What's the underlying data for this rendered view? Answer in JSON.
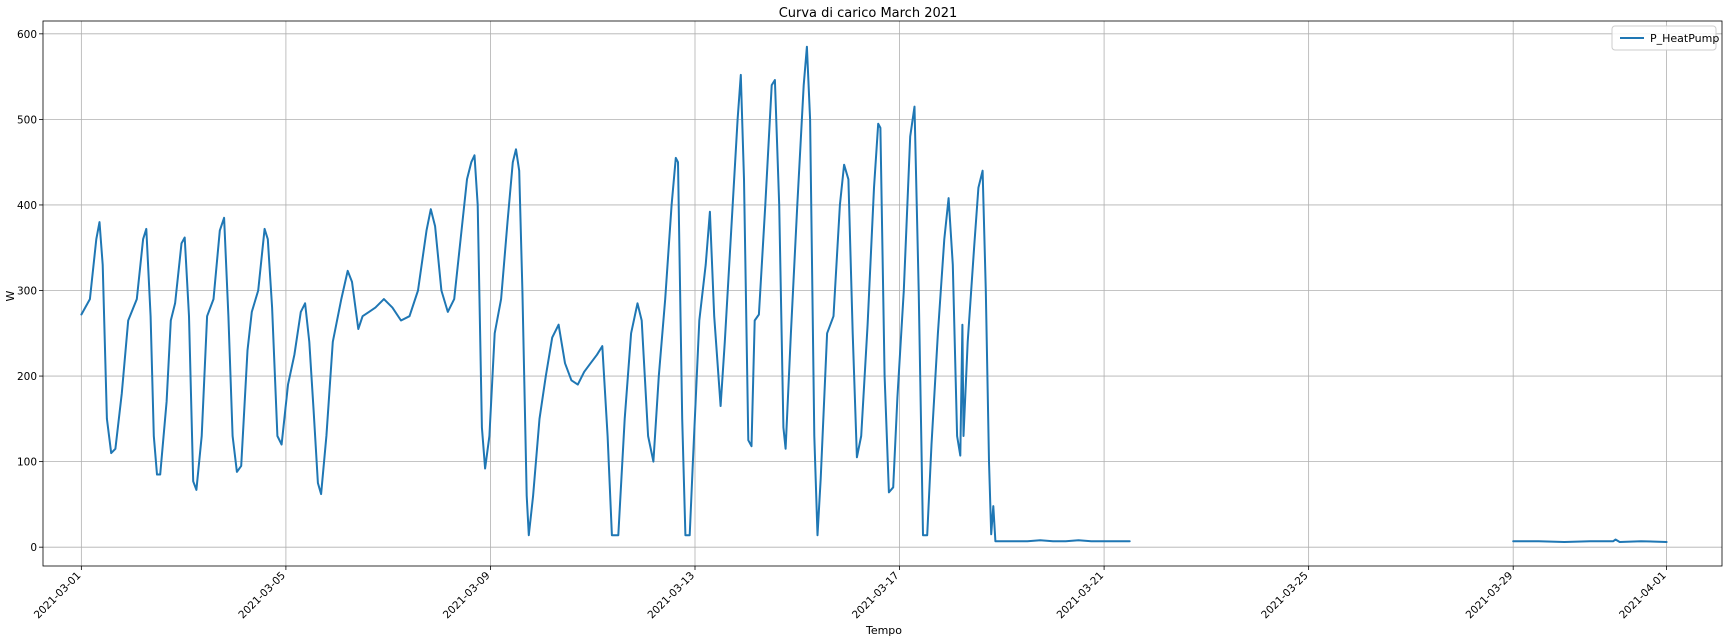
{
  "chart_data": {
    "type": "line",
    "title": "Curva di carico March 2021",
    "xlabel": "Tempo",
    "ylabel": "W",
    "xlim": [
      "2021-02-28 06:00",
      "2021-04-02 02:00"
    ],
    "ylim": [
      -22,
      615
    ],
    "grid": true,
    "legend_position": "top-right",
    "x_ticks": [
      "2021-03-01",
      "2021-03-05",
      "2021-03-09",
      "2021-03-13",
      "2021-03-17",
      "2021-03-21",
      "2021-03-25",
      "2021-03-29",
      "2021-04-01"
    ],
    "y_ticks": [
      0,
      100,
      200,
      300,
      400,
      500,
      600
    ],
    "colors": {
      "series": "#1f77b4",
      "grid": "#b0b0b0"
    },
    "series": [
      {
        "name": "P_HeatPump",
        "segments": [
          [
            [
              "2021-03-01 00:00",
              272
            ],
            [
              "2021-03-01 04:00",
              290
            ],
            [
              "2021-03-01 07:00",
              360
            ],
            [
              "2021-03-01 08:30",
              380
            ],
            [
              "2021-03-01 10:00",
              330
            ],
            [
              "2021-03-01 12:00",
              150
            ],
            [
              "2021-03-01 14:00",
              110
            ],
            [
              "2021-03-01 16:00",
              115
            ],
            [
              "2021-03-01 19:00",
              180
            ],
            [
              "2021-03-01 22:00",
              265
            ],
            [
              "2021-03-02 02:00",
              290
            ],
            [
              "2021-03-02 05:00",
              360
            ],
            [
              "2021-03-02 06:30",
              372
            ],
            [
              "2021-03-02 08:30",
              270
            ],
            [
              "2021-03-02 10:00",
              130
            ],
            [
              "2021-03-02 11:30",
              85
            ],
            [
              "2021-03-02 13:00",
              85
            ],
            [
              "2021-03-02 16:00",
              170
            ],
            [
              "2021-03-02 18:00",
              265
            ],
            [
              "2021-03-02 20:00",
              285
            ],
            [
              "2021-03-02 23:00",
              355
            ],
            [
              "2021-03-03 00:30",
              362
            ],
            [
              "2021-03-03 02:30",
              270
            ],
            [
              "2021-03-03 04:30",
              77
            ],
            [
              "2021-03-03 06:00",
              67
            ],
            [
              "2021-03-03 08:30",
              130
            ],
            [
              "2021-03-03 11:00",
              270
            ],
            [
              "2021-03-03 14:00",
              290
            ],
            [
              "2021-03-03 17:00",
              370
            ],
            [
              "2021-03-03 19:00",
              385
            ],
            [
              "2021-03-03 21:00",
              270
            ],
            [
              "2021-03-03 23:00",
              130
            ],
            [
              "2021-03-04 01:00",
              88
            ],
            [
              "2021-03-04 03:00",
              95
            ],
            [
              "2021-03-04 06:00",
              230
            ],
            [
              "2021-03-04 08:00",
              275
            ],
            [
              "2021-03-04 11:00",
              300
            ],
            [
              "2021-03-04 14:00",
              372
            ],
            [
              "2021-03-04 15:30",
              360
            ],
            [
              "2021-03-04 17:30",
              280
            ],
            [
              "2021-03-04 20:00",
              130
            ],
            [
              "2021-03-04 22:00",
              120
            ],
            [
              "2021-03-05 01:00",
              190
            ],
            [
              "2021-03-05 04:00",
              225
            ],
            [
              "2021-03-05 07:00",
              275
            ],
            [
              "2021-03-05 09:00",
              285
            ],
            [
              "2021-03-05 11:00",
              240
            ],
            [
              "2021-03-05 13:00",
              160
            ],
            [
              "2021-03-05 15:00",
              75
            ],
            [
              "2021-03-05 16:30",
              62
            ],
            [
              "2021-03-05 19:00",
              130
            ],
            [
              "2021-03-05 22:00",
              240
            ],
            [
              "2021-03-06 02:00",
              290
            ],
            [
              "2021-03-06 05:00",
              323
            ],
            [
              "2021-03-06 07:00",
              310
            ],
            [
              "2021-03-06 10:00",
              255
            ],
            [
              "2021-03-06 12:00",
              270
            ],
            [
              "2021-03-06 15:00",
              275
            ],
            [
              "2021-03-06 18:00",
              280
            ],
            [
              "2021-03-06 22:00",
              290
            ],
            [
              "2021-03-07 02:00",
              280
            ],
            [
              "2021-03-07 06:00",
              265
            ],
            [
              "2021-03-07 10:00",
              270
            ],
            [
              "2021-03-07 14:00",
              300
            ],
            [
              "2021-03-07 18:00",
              370
            ],
            [
              "2021-03-07 20:00",
              395
            ],
            [
              "2021-03-07 22:00",
              375
            ],
            [
              "2021-03-08 01:00",
              300
            ],
            [
              "2021-03-08 04:00",
              275
            ],
            [
              "2021-03-08 07:00",
              290
            ],
            [
              "2021-03-08 10:00",
              360
            ],
            [
              "2021-03-08 13:00",
              430
            ],
            [
              "2021-03-08 15:00",
              450
            ],
            [
              "2021-03-08 16:30",
              458
            ],
            [
              "2021-03-08 18:00",
              400
            ],
            [
              "2021-03-08 20:00",
              140
            ],
            [
              "2021-03-08 21:30",
              92
            ],
            [
              "2021-03-08 23:30",
              130
            ],
            [
              "2021-03-09 02:00",
              250
            ],
            [
              "2021-03-09 05:00",
              290
            ],
            [
              "2021-03-09 08:00",
              380
            ],
            [
              "2021-03-09 10:30",
              450
            ],
            [
              "2021-03-09 12:00",
              465
            ],
            [
              "2021-03-09 13:30",
              440
            ],
            [
              "2021-03-09 15:00",
              300
            ],
            [
              "2021-03-09 17:00",
              60
            ],
            [
              "2021-03-09 18:00",
              14
            ],
            [
              "2021-03-09 20:00",
              60
            ],
            [
              "2021-03-09 23:00",
              150
            ],
            [
              "2021-03-10 02:00",
              200
            ],
            [
              "2021-03-10 05:00",
              245
            ],
            [
              "2021-03-10 08:00",
              260
            ],
            [
              "2021-03-10 11:00",
              215
            ],
            [
              "2021-03-10 14:00",
              195
            ],
            [
              "2021-03-10 17:00",
              190
            ],
            [
              "2021-03-10 20:00",
              205
            ],
            [
              "2021-03-10 23:00",
              215
            ],
            [
              "2021-03-11 02:00",
              225
            ],
            [
              "2021-03-11 04:30",
              235
            ],
            [
              "2021-03-11 07:00",
              130
            ],
            [
              "2021-03-11 09:00",
              14
            ],
            [
              "2021-03-11 12:00",
              14
            ],
            [
              "2021-03-11 15:00",
              150
            ],
            [
              "2021-03-11 18:00",
              250
            ],
            [
              "2021-03-11 21:00",
              285
            ],
            [
              "2021-03-11 23:00",
              265
            ],
            [
              "2021-03-12 02:00",
              130
            ],
            [
              "2021-03-12 04:30",
              100
            ],
            [
              "2021-03-12 07:00",
              200
            ],
            [
              "2021-03-12 10:00",
              290
            ],
            [
              "2021-03-12 13:00",
              400
            ],
            [
              "2021-03-12 15:00",
              455
            ],
            [
              "2021-03-12 16:00",
              450
            ],
            [
              "2021-03-12 18:00",
              150
            ],
            [
              "2021-03-12 19:30",
              14
            ],
            [
              "2021-03-12 21:30",
              14
            ],
            [
              "2021-03-12 23:00",
              100
            ],
            [
              "2021-03-13 02:00",
              265
            ],
            [
              "2021-03-13 05:00",
              330
            ],
            [
              "2021-03-13 07:00",
              392
            ],
            [
              "2021-03-13 09:00",
              270
            ],
            [
              "2021-03-13 12:00",
              165
            ],
            [
              "2021-03-13 14:00",
              240
            ],
            [
              "2021-03-13 17:00",
              370
            ],
            [
              "2021-03-13 20:00",
              500
            ],
            [
              "2021-03-13 21:30",
              552
            ],
            [
              "2021-03-13 23:00",
              430
            ],
            [
              "2021-03-14 01:00",
              125
            ],
            [
              "2021-03-14 02:30",
              118
            ],
            [
              "2021-03-14 04:00",
              265
            ],
            [
              "2021-03-14 06:00",
              272
            ],
            [
              "2021-03-14 09:00",
              400
            ],
            [
              "2021-03-14 12:00",
              540
            ],
            [
              "2021-03-14 13:30",
              546
            ],
            [
              "2021-03-14 15:30",
              400
            ],
            [
              "2021-03-14 17:30",
              140
            ],
            [
              "2021-03-14 18:30",
              115
            ],
            [
              "2021-03-14 21:00",
              250
            ],
            [
              "2021-03-15 00:00",
              400
            ],
            [
              "2021-03-15 03:00",
              540
            ],
            [
              "2021-03-15 04:30",
              585
            ],
            [
              "2021-03-15 06:00",
              500
            ],
            [
              "2021-03-15 08:00",
              130
            ],
            [
              "2021-03-15 09:30",
              14
            ],
            [
              "2021-03-15 11:00",
              80
            ],
            [
              "2021-03-15 14:00",
              250
            ],
            [
              "2021-03-15 17:00",
              270
            ],
            [
              "2021-03-15 20:00",
              400
            ],
            [
              "2021-03-15 22:00",
              447
            ],
            [
              "2021-03-16 00:00",
              430
            ],
            [
              "2021-03-16 02:00",
              250
            ],
            [
              "2021-03-16 04:00",
              105
            ],
            [
              "2021-03-16 06:00",
              130
            ],
            [
              "2021-03-16 09:00",
              260
            ],
            [
              "2021-03-16 12:00",
              420
            ],
            [
              "2021-03-16 14:00",
              495
            ],
            [
              "2021-03-16 15:00",
              490
            ],
            [
              "2021-03-16 17:00",
              200
            ],
            [
              "2021-03-16 19:00",
              64
            ],
            [
              "2021-03-16 21:00",
              70
            ],
            [
              "2021-03-16 23:00",
              175
            ],
            [
              "2021-03-17 02:00",
              300
            ],
            [
              "2021-03-17 05:00",
              480
            ],
            [
              "2021-03-17 07:00",
              515
            ],
            [
              "2021-03-17 09:00",
              300
            ],
            [
              "2021-03-17 11:00",
              14
            ],
            [
              "2021-03-17 13:00",
              14
            ],
            [
              "2021-03-17 15:00",
              120
            ],
            [
              "2021-03-17 18:00",
              250
            ],
            [
              "2021-03-17 21:00",
              360
            ],
            [
              "2021-03-17 23:00",
              408
            ],
            [
              "2021-03-18 01:00",
              330
            ],
            [
              "2021-03-18 03:00",
              130
            ],
            [
              "2021-03-18 04:30",
              107
            ],
            [
              "2021-03-18 05:30",
              260
            ],
            [
              "2021-03-18 06:00",
              130
            ],
            [
              "2021-03-18 08:00",
              240
            ],
            [
              "2021-03-18 11:00",
              350
            ],
            [
              "2021-03-18 13:00",
              420
            ],
            [
              "2021-03-18 15:00",
              440
            ],
            [
              "2021-03-18 16:30",
              300
            ],
            [
              "2021-03-18 18:00",
              100
            ],
            [
              "2021-03-18 19:00",
              15
            ],
            [
              "2021-03-18 20:00",
              48
            ],
            [
              "2021-03-18 21:00",
              7
            ],
            [
              "2021-03-19 06:00",
              7
            ],
            [
              "2021-03-19 12:00",
              7
            ],
            [
              "2021-03-19 18:00",
              8
            ],
            [
              "2021-03-20 00:00",
              7
            ],
            [
              "2021-03-20 06:00",
              7
            ],
            [
              "2021-03-20 12:00",
              8
            ],
            [
              "2021-03-20 18:00",
              7
            ],
            [
              "2021-03-21 00:00",
              7
            ],
            [
              "2021-03-21 12:00",
              7
            ]
          ],
          [
            [
              "2021-03-29 00:00",
              7
            ],
            [
              "2021-03-29 12:00",
              7
            ],
            [
              "2021-03-30 00:00",
              6
            ],
            [
              "2021-03-30 12:00",
              7
            ],
            [
              "2021-03-30 23:00",
              7
            ],
            [
              "2021-03-31 00:00",
              9
            ],
            [
              "2021-03-31 02:00",
              6
            ],
            [
              "2021-03-31 12:00",
              7
            ],
            [
              "2021-04-01 00:00",
              6
            ]
          ]
        ]
      }
    ]
  }
}
